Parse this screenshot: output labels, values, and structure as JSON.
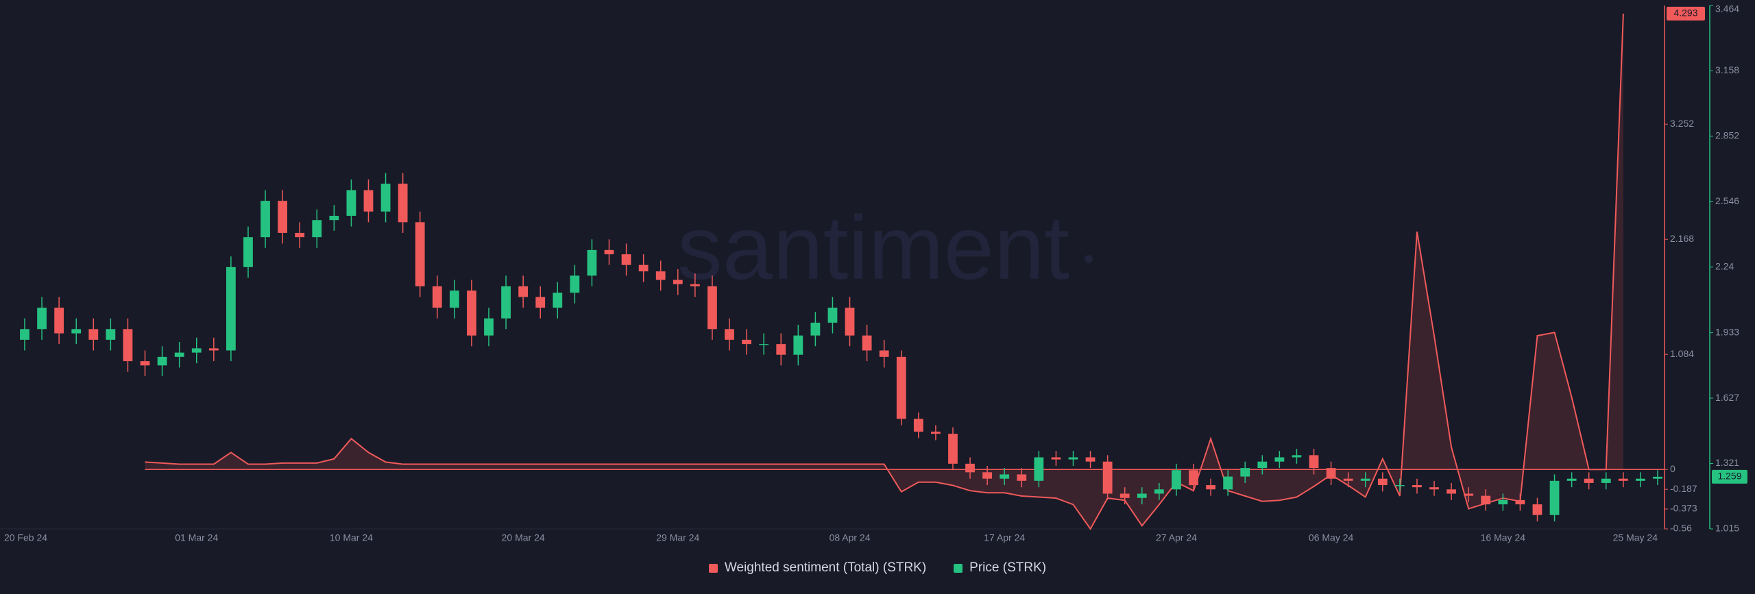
{
  "chart_data": {
    "type": "candlestick",
    "watermark": "santiment",
    "categories": [
      "20 Feb 24",
      null,
      null,
      null,
      null,
      null,
      null,
      null,
      null,
      null,
      "01 Mar 24",
      null,
      null,
      null,
      null,
      null,
      null,
      null,
      null,
      "10 Mar 24",
      null,
      null,
      null,
      null,
      null,
      null,
      null,
      null,
      null,
      "20 Mar 24",
      null,
      null,
      null,
      null,
      null,
      null,
      null,
      null,
      "29 Mar 24",
      null,
      null,
      null,
      null,
      null,
      null,
      null,
      null,
      null,
      "08 Apr 24",
      null,
      null,
      null,
      null,
      null,
      null,
      null,
      null,
      "17 Apr 24",
      null,
      null,
      null,
      null,
      null,
      null,
      null,
      null,
      null,
      "27 Apr 24",
      null,
      null,
      null,
      null,
      null,
      null,
      null,
      null,
      "06 May 24",
      null,
      null,
      null,
      null,
      null,
      null,
      null,
      null,
      null,
      "16 May 24",
      null,
      null,
      null,
      null,
      null,
      null,
      null,
      null,
      "25 May 24"
    ],
    "series": [
      {
        "name": "Weighted sentiment (Total) (STRK)",
        "type": "line",
        "axis": "y2",
        "color": "#f05a5a",
        "values": [
          null,
          null,
          null,
          null,
          null,
          null,
          null,
          0.07,
          0.06,
          0.05,
          0.05,
          0.05,
          0.16,
          0.05,
          0.05,
          0.06,
          0.06,
          0.06,
          0.1,
          0.29,
          0.16,
          0.07,
          0.05,
          0.05,
          0.05,
          0.05,
          0.05,
          0.05,
          0.05,
          0.05,
          0.05,
          0.05,
          0.05,
          0.05,
          0.05,
          0.05,
          0.05,
          0.05,
          0.05,
          0.05,
          0.05,
          0.05,
          0.05,
          0.05,
          0.05,
          0.05,
          0.05,
          0.05,
          0.05,
          0.05,
          0.05,
          -0.21,
          -0.12,
          -0.12,
          -0.15,
          -0.2,
          -0.22,
          -0.22,
          -0.25,
          -0.26,
          -0.27,
          -0.33,
          -0.56,
          -0.27,
          -0.29,
          -0.53,
          -0.33,
          -0.12,
          -0.2,
          0.29,
          -0.2,
          -0.25,
          -0.3,
          -0.29,
          -0.26,
          -0.16,
          -0.05,
          -0.15,
          -0.26,
          0.1,
          -0.25,
          2.24,
          1.26,
          0.21,
          -0.37,
          -0.32,
          -0.27,
          -0.3,
          1.26,
          1.29,
          0.68,
          0,
          0,
          4.293,
          null,
          null
        ]
      },
      {
        "name": "Price (STRK)",
        "type": "candlestick",
        "color": "#26c281",
        "down_color": "#f05a5a",
        "open": [
          1.9,
          1.95,
          2.05,
          1.93,
          1.95,
          1.9,
          1.95,
          1.8,
          1.78,
          1.82,
          1.84,
          1.86,
          1.85,
          2.24,
          2.38,
          2.55,
          2.4,
          2.38,
          2.46,
          2.48,
          2.6,
          2.5,
          2.63,
          2.45,
          2.15,
          2.05,
          2.13,
          1.92,
          2.0,
          2.15,
          2.1,
          2.05,
          2.12,
          2.2,
          2.32,
          2.3,
          2.25,
          2.22,
          2.18,
          2.16,
          2.15,
          1.95,
          1.9,
          1.88,
          1.88,
          1.83,
          1.92,
          1.98,
          2.05,
          1.92,
          1.85,
          1.82,
          1.53,
          1.47,
          1.46,
          1.32,
          1.28,
          1.25,
          1.27,
          1.24,
          1.35,
          1.34,
          1.35,
          1.33,
          1.18,
          1.16,
          1.18,
          1.2,
          1.29,
          1.22,
          1.2,
          1.26,
          1.3,
          1.33,
          1.35,
          1.36,
          1.3,
          1.25,
          1.24,
          1.25,
          1.22,
          1.22,
          1.21,
          1.2,
          1.18,
          1.17,
          1.13,
          1.15,
          1.13,
          1.08,
          1.24,
          1.25,
          1.23,
          1.25,
          1.24,
          1.25
        ],
        "high": [
          2.0,
          2.1,
          2.1,
          2.0,
          2.0,
          2.0,
          2.0,
          1.85,
          1.87,
          1.89,
          1.91,
          1.91,
          2.29,
          2.43,
          2.6,
          2.6,
          2.45,
          2.51,
          2.53,
          2.65,
          2.65,
          2.68,
          2.68,
          2.5,
          2.2,
          2.18,
          2.18,
          2.05,
          2.2,
          2.2,
          2.15,
          2.17,
          2.25,
          2.37,
          2.37,
          2.35,
          2.3,
          2.27,
          2.23,
          2.21,
          2.2,
          2.0,
          1.95,
          1.93,
          1.93,
          1.97,
          2.03,
          2.1,
          2.1,
          1.97,
          1.9,
          1.85,
          1.56,
          1.5,
          1.49,
          1.35,
          1.31,
          1.3,
          1.3,
          1.38,
          1.38,
          1.38,
          1.38,
          1.36,
          1.21,
          1.21,
          1.23,
          1.32,
          1.32,
          1.25,
          1.29,
          1.33,
          1.36,
          1.38,
          1.39,
          1.39,
          1.33,
          1.28,
          1.28,
          1.28,
          1.25,
          1.25,
          1.24,
          1.23,
          1.21,
          1.2,
          1.18,
          1.18,
          1.16,
          1.27,
          1.28,
          1.28,
          1.28,
          1.28,
          1.28,
          1.29
        ],
        "low": [
          1.85,
          1.9,
          1.88,
          1.88,
          1.85,
          1.85,
          1.75,
          1.73,
          1.73,
          1.77,
          1.79,
          1.8,
          1.8,
          2.19,
          2.33,
          2.35,
          2.33,
          2.33,
          2.41,
          2.43,
          2.45,
          2.45,
          2.4,
          2.1,
          2.0,
          2.0,
          1.87,
          1.87,
          1.95,
          2.05,
          2.0,
          2.0,
          2.07,
          2.15,
          2.25,
          2.2,
          2.17,
          2.13,
          2.11,
          2.1,
          1.9,
          1.85,
          1.83,
          1.83,
          1.78,
          1.78,
          1.87,
          1.93,
          1.87,
          1.8,
          1.77,
          1.5,
          1.44,
          1.43,
          1.29,
          1.25,
          1.22,
          1.22,
          1.21,
          1.21,
          1.31,
          1.31,
          1.3,
          1.15,
          1.13,
          1.13,
          1.15,
          1.17,
          1.19,
          1.17,
          1.17,
          1.23,
          1.27,
          1.3,
          1.32,
          1.27,
          1.22,
          1.21,
          1.21,
          1.19,
          1.19,
          1.18,
          1.17,
          1.15,
          1.14,
          1.1,
          1.1,
          1.1,
          1.05,
          1.05,
          1.21,
          1.2,
          1.2,
          1.21,
          1.21,
          1.22
        ],
        "close": [
          1.95,
          2.05,
          1.93,
          1.95,
          1.9,
          1.95,
          1.8,
          1.78,
          1.82,
          1.84,
          1.86,
          1.85,
          2.24,
          2.38,
          2.55,
          2.4,
          2.38,
          2.46,
          2.48,
          2.6,
          2.5,
          2.63,
          2.45,
          2.15,
          2.05,
          2.13,
          1.92,
          2.0,
          2.15,
          2.1,
          2.05,
          2.12,
          2.2,
          2.32,
          2.3,
          2.25,
          2.22,
          2.18,
          2.16,
          2.15,
          1.95,
          1.9,
          1.88,
          1.88,
          1.83,
          1.92,
          1.98,
          2.05,
          1.92,
          1.85,
          1.82,
          1.53,
          1.47,
          1.46,
          1.32,
          1.28,
          1.25,
          1.27,
          1.24,
          1.35,
          1.34,
          1.35,
          1.33,
          1.18,
          1.16,
          1.18,
          1.2,
          1.29,
          1.22,
          1.2,
          1.26,
          1.3,
          1.33,
          1.35,
          1.36,
          1.3,
          1.25,
          1.24,
          1.25,
          1.22,
          1.22,
          1.21,
          1.2,
          1.18,
          1.17,
          1.13,
          1.15,
          1.13,
          1.08,
          1.24,
          1.25,
          1.23,
          1.25,
          1.24,
          1.25,
          1.259
        ]
      }
    ],
    "ylim": [
      1.015,
      3.464
    ],
    "yticks": [
      1.015,
      1.321,
      1.627,
      1.933,
      2.24,
      2.546,
      2.852,
      3.158,
      3.464
    ],
    "y2lim": [
      -0.56,
      4.37
    ],
    "y2ticks": [
      -0.56,
      -0.373,
      -0.187,
      0,
      1.084,
      2.168,
      3.252
    ],
    "grid": false
  }
}
